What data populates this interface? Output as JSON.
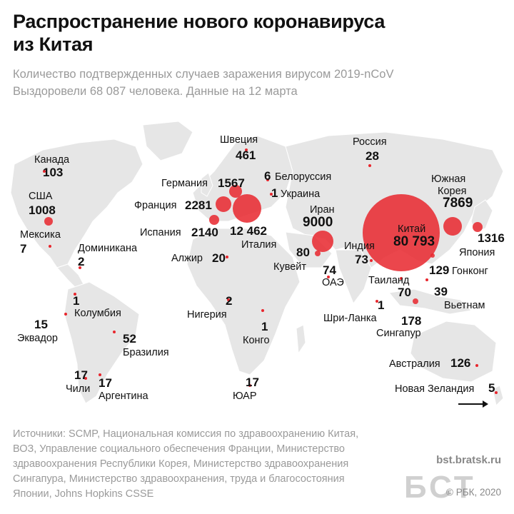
{
  "title_lines": [
    "Распространение нового коронавируса",
    "из Китая"
  ],
  "subtitle_lines": [
    "Количество подтвержденных случаев заражения вирусом 2019-nCoV",
    "Выздоровели 68 087 человека. Данные на 12 марта"
  ],
  "labels": {
    "sweden_name": "Швеция",
    "sweden_val": "461",
    "russia_name": "Россия",
    "russia_val": "28",
    "canada_name": "Канада",
    "canada_val": "103",
    "usa_name": "США",
    "usa_val": "1008",
    "mexico_name": "Мексика",
    "mexico_val": "7",
    "dominicana_name": "Доминикана",
    "dominicana_val": "2",
    "germany_name": "Германия",
    "germany_val": "1567",
    "belarus_val": "6",
    "belarus_name": "Белоруссия",
    "ukraine_val": "1",
    "ukraine_name": "Украина",
    "france_name": "Франция",
    "france_val": "2281",
    "spain_name": "Испания",
    "spain_val": "2140",
    "italy_val": "12 462",
    "italy_name": "Италия",
    "algeria_name": "Алжир",
    "algeria_val": "20",
    "iran_name": "Иран",
    "iran_val": "9000",
    "kuwait_val": "80",
    "kuwait_name": "Кувейт",
    "uae_val": "74",
    "uae_name": "ОАЭ",
    "india_name": "Индия",
    "india_val": "73",
    "china_name": "Китай",
    "china_val": "80 793",
    "skorea_name_1": "Южная",
    "skorea_name_2": "Корея",
    "skorea_val": "7869",
    "japan_val": "1316",
    "japan_name": "Япония",
    "hongkong_val": "129",
    "hongkong_name": "Гонконг",
    "thailand_name": "Таиланд",
    "thailand_val": "70",
    "vietnam_val": "39",
    "vietnam_name": "Вьетнам",
    "srilanka_val": "1",
    "srilanka_name": "Шри-Ланка",
    "singapore_val": "178",
    "singapore_name": "Сингапур",
    "colombia_val": "1",
    "colombia_name": "Колумбия",
    "ecuador_val": "15",
    "ecuador_name": "Эквадор",
    "brazil_val": "52",
    "brazil_name": "Бразилия",
    "nigeria_val": "2",
    "nigeria_name": "Нигерия",
    "congo_val": "1",
    "congo_name": "Конго",
    "chile_val": "17",
    "chile_name": "Чили",
    "argentina_val": "17",
    "argentina_name": "Аргентина",
    "southafrica_val": "17",
    "southafrica_name": "ЮАР",
    "australia_name": "Австралия",
    "australia_val": "126",
    "newzealand_name": "Новая Зеландия",
    "newzealand_val": "5"
  },
  "cases": [
    {
      "country": "Китай",
      "value": 80793
    },
    {
      "country": "Италия",
      "value": 12462
    },
    {
      "country": "Иран",
      "value": 9000
    },
    {
      "country": "Южная Корея",
      "value": 7869
    },
    {
      "country": "Франция",
      "value": 2281
    },
    {
      "country": "Испания",
      "value": 2140
    },
    {
      "country": "Германия",
      "value": 1567
    },
    {
      "country": "Япония",
      "value": 1316
    },
    {
      "country": "США",
      "value": 1008
    }
  ],
  "colors": {
    "bubble": "#e8262d",
    "land": "#e6e6e6",
    "text": "#111111",
    "muted": "#9a9a9a"
  },
  "sources_lines": [
    "Источники: SCMP, Национальная комиссия по здравоохранению Китая,",
    "ВОЗ, Управление социального обеспечения Франции, Министерство",
    "здравоохранения Республики Корея, Министерство здравоохранения",
    "Сингапура, Министерство здравоохранения, труда и благосостояния",
    "Японии, Johns Hopkins CSSE"
  ],
  "site": "bst.bratsk.ru",
  "watermark": "БСТ",
  "copyright": "© РБК, 2020"
}
